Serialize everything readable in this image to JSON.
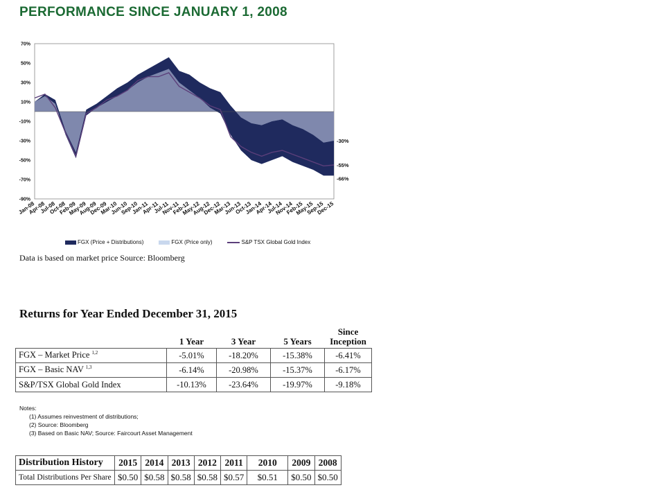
{
  "page": {
    "title": "PERFORMANCE SINCE JANUARY 1, 2008",
    "source_note": "Data is based on market price  Source: Bloomberg"
  },
  "chart_data": {
    "type": "area",
    "title": "",
    "xlabel": "",
    "ylabel": "",
    "ylim": [
      -90,
      70
    ],
    "yticks": [
      "70%",
      "50%",
      "30%",
      "10%",
      "-10%",
      "-30%",
      "-50%",
      "-70%",
      "-90%"
    ],
    "ytick_values": [
      70,
      50,
      30,
      10,
      -10,
      -30,
      -50,
      -70,
      -90
    ],
    "xtick_labels": [
      "Jan-08",
      "Apr-08",
      "Jul-08",
      "Oct-08",
      "Feb-09",
      "May-09",
      "Aug-09",
      "Dec-09",
      "Mar-10",
      "Jun-10",
      "Sep-10",
      "Jan-11",
      "Apr-11",
      "Jul-11",
      "Nov-11",
      "Feb-12",
      "May-12",
      "Aug-12",
      "Dec-12",
      "Mar-13",
      "Jun-13",
      "Oct-13",
      "Jan-14",
      "Apr-14",
      "Jul-14",
      "Nov-14",
      "Feb-15",
      "May-15",
      "Sep-15",
      "Dec-15"
    ],
    "colors": {
      "total": "#1f2a5e",
      "price": "#c9d8ee",
      "overlap": "#7f88ad",
      "index": "#5b3f7a"
    },
    "series": [
      {
        "name": "FGX  (Price + Distributions)",
        "values": [
          10,
          18,
          12,
          -20,
          -42,
          2,
          8,
          16,
          24,
          30,
          38,
          44,
          50,
          56,
          42,
          38,
          30,
          24,
          20,
          6,
          -6,
          -12,
          -14,
          -10,
          -8,
          -14,
          -18,
          -24,
          -32,
          -30
        ]
      },
      {
        "name": "FGX (Price only)",
        "values": [
          10,
          16,
          8,
          -24,
          -48,
          -4,
          4,
          10,
          16,
          22,
          30,
          36,
          40,
          44,
          30,
          22,
          14,
          4,
          -2,
          -24,
          -40,
          -50,
          -54,
          -50,
          -46,
          -52,
          -56,
          -60,
          -66,
          -66
        ]
      },
      {
        "name": "S&P TSX Global Gold Index",
        "values": [
          14,
          18,
          4,
          -22,
          -46,
          -2,
          4,
          12,
          16,
          22,
          32,
          36,
          36,
          40,
          26,
          20,
          14,
          6,
          2,
          -26,
          -36,
          -42,
          -46,
          -42,
          -40,
          -44,
          -48,
          -52,
          -56,
          -55
        ]
      }
    ],
    "end_labels": [
      "-30%",
      "-55%",
      "-66%"
    ],
    "legend_position": "bottom",
    "grid": false
  },
  "returns": {
    "title": "Returns for Year Ended December 31, 2015",
    "columns": [
      "1 Year",
      "3 Year",
      "5 Years",
      "Since Inception"
    ],
    "rows": [
      {
        "label": "FGX – Market Price",
        "sup": "1,2",
        "values": [
          "-5.01%",
          "-18.20%",
          "-15.38%",
          "-6.41%"
        ]
      },
      {
        "label": "FGX – Basic NAV",
        "sup": "1,3",
        "values": [
          "-6.14%",
          "-20.98%",
          "-15.37%",
          "-6.17%"
        ]
      },
      {
        "label": "S&P/TSX Global Gold Index",
        "sup": "",
        "values": [
          "-10.13%",
          "-23.64%",
          "-19.97%",
          "-9.18%"
        ]
      }
    ]
  },
  "notes": {
    "heading": "Notes:",
    "items": [
      "(1) Assumes reinvestment of distributions;",
      "(2) Source: Bloomberg",
      "(3) Based on Basic NAV; Source: Faircourt Asset Management"
    ]
  },
  "distribution": {
    "title": "Distribution History",
    "years": [
      "2015",
      "2014",
      "2013",
      "2012",
      "2011",
      "2010",
      "2009",
      "2008"
    ],
    "row_label": "Total Distributions Per Share",
    "values": [
      "$0.50",
      "$0.58",
      "$0.58",
      "$0.58",
      "$0.57",
      "$0.51",
      "$0.50",
      "$0.50"
    ]
  }
}
